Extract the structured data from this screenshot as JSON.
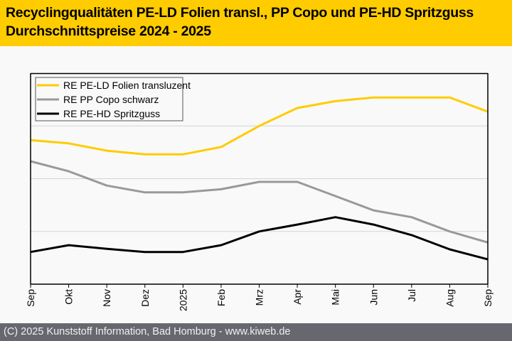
{
  "header": {
    "title_line1": "Recyclingqualitäten PE-LD Folien transl., PP Copo und PE-HD Spritzguss",
    "title_line2": "Durchschnittspreise 2024 - 2025",
    "background": "#ffcc00"
  },
  "footer": {
    "text": "(C) 2025 Kunststoff Information, Bad Homburg - www.kiweb.de"
  },
  "chart_data": {
    "type": "line",
    "title": "Recyclingqualitäten PE-LD Folien transl., PP Copo und PE-HD Spritzguss – Durchschnittspreise 2024 - 2025",
    "xlabel": "",
    "ylabel": "",
    "y_unit_note": "no y-axis labels shown; values are relative index in gridline units (0 = axis bottom, 4 = top)",
    "ylim": [
      0,
      4
    ],
    "grid": true,
    "legend_position": "top-left",
    "categories": [
      "Sep",
      "Okt",
      "Nov",
      "Dez",
      "2025",
      "Feb",
      "Mrz",
      "Apr",
      "Mai",
      "Jun",
      "Jul",
      "Aug",
      "Sep"
    ],
    "series": [
      {
        "name": "RE PE-LD Folien transluzent",
        "color": "#ffcc00",
        "values": [
          2.73,
          2.67,
          2.53,
          2.46,
          2.46,
          2.6,
          3.0,
          3.34,
          3.47,
          3.54,
          3.54,
          3.54,
          3.27
        ]
      },
      {
        "name": "RE PP Copo schwarz",
        "color": "#999999",
        "values": [
          2.33,
          2.14,
          1.87,
          1.74,
          1.74,
          1.8,
          1.94,
          1.94,
          1.67,
          1.4,
          1.27,
          1.0,
          0.79
        ]
      },
      {
        "name": "RE PE-HD Spritzguss",
        "color": "#000000",
        "values": [
          0.61,
          0.74,
          0.67,
          0.61,
          0.61,
          0.74,
          1.0,
          1.13,
          1.27,
          1.13,
          0.93,
          0.66,
          0.47
        ]
      }
    ]
  }
}
